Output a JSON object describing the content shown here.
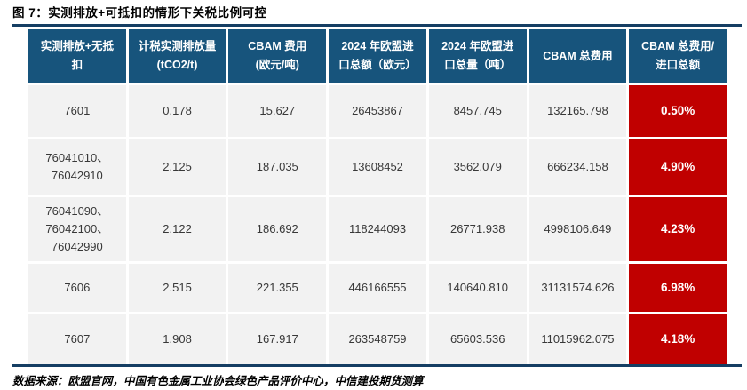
{
  "figure": {
    "title": "图 7：实测排放+可抵扣的情形下关税比例可控",
    "source": "数据来源：欧盟官网，中国有色金属工业协会绿色产品评价中心，中信建投期货测算"
  },
  "colors": {
    "header_bg": "#17547c",
    "highlight_bg": "#c00000",
    "row_bg": "#f2f2f2",
    "rule": "#153e63",
    "header_text": "#ffffff"
  },
  "table": {
    "headers": [
      {
        "lines": [
          "实测排放+无抵",
          "扣"
        ]
      },
      {
        "lines": [
          "计税实测排放量",
          "(tCO2/t)"
        ]
      },
      {
        "lines": [
          "CBAM 费用",
          "(欧元/吨)"
        ]
      },
      {
        "lines": [
          "2024 年欧盟进",
          "口总额（欧元）"
        ]
      },
      {
        "lines": [
          "2024 年欧盟进",
          "口总量（吨）"
        ]
      },
      {
        "lines": [
          "CBAM 总费用"
        ]
      },
      {
        "lines": [
          "CBAM 总费用/",
          "进口总额"
        ]
      }
    ],
    "rows": [
      {
        "code": [
          "7601"
        ],
        "cells": [
          "0.178",
          "15.627",
          "26453867",
          "8457.745",
          "132165.798"
        ],
        "ratio": "0.50%"
      },
      {
        "code": [
          "76041010、",
          "76042910"
        ],
        "cells": [
          "2.125",
          "187.035",
          "13608452",
          "3562.079",
          "666234.158"
        ],
        "ratio": "4.90%"
      },
      {
        "code": [
          "76041090、",
          "76042100、",
          "76042990"
        ],
        "cells": [
          "2.122",
          "186.692",
          "118244093",
          "26771.938",
          "4998106.649"
        ],
        "ratio": "4.23%"
      },
      {
        "code": [
          "7606"
        ],
        "cells": [
          "2.515",
          "221.355",
          "446166555",
          "140640.810",
          "31131574.626"
        ],
        "ratio": "6.98%"
      },
      {
        "code": [
          "7607"
        ],
        "cells": [
          "1.908",
          "167.917",
          "263548759",
          "65603.536",
          "11015962.075"
        ],
        "ratio": "4.18%"
      }
    ]
  },
  "chart_data": {
    "type": "table",
    "title": "实测排放+可抵扣的情形下关税比例可控",
    "columns": [
      "实测排放+无抵扣",
      "计税实测排放量 (tCO2/t)",
      "CBAM 费用 (欧元/吨)",
      "2024 年欧盟进口总额（欧元）",
      "2024 年欧盟进口总量（吨）",
      "CBAM 总费用",
      "CBAM 总费用/进口总额"
    ],
    "rows": [
      [
        "7601",
        0.178,
        15.627,
        26453867,
        8457.745,
        132165.798,
        "0.50%"
      ],
      [
        "76041010、76042910",
        2.125,
        187.035,
        13608452,
        3562.079,
        666234.158,
        "4.90%"
      ],
      [
        "76041090、76042100、76042990",
        2.122,
        186.692,
        118244093,
        26771.938,
        4998106.649,
        "4.23%"
      ],
      [
        "7606",
        2.515,
        221.355,
        446166555,
        140640.81,
        31131574.626,
        "6.98%"
      ],
      [
        "7607",
        1.908,
        167.917,
        263548759,
        65603.536,
        11015962.075,
        "4.18%"
      ]
    ]
  }
}
